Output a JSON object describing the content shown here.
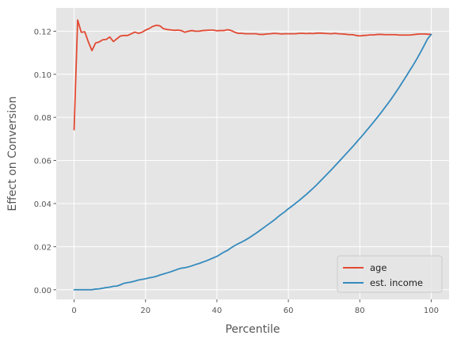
{
  "chart_data": {
    "type": "line",
    "xlabel": "Percentile",
    "ylabel": "Effect on Conversion",
    "xlim": [
      -5,
      105
    ],
    "ylim": [
      -0.0045,
      0.1308
    ],
    "x_ticks": [
      0,
      20,
      40,
      60,
      80,
      100
    ],
    "y_ticks": [
      0.0,
      0.02,
      0.04,
      0.06,
      0.08,
      0.1,
      0.12
    ],
    "y_tick_labels": [
      "0.00",
      "0.02",
      "0.04",
      "0.06",
      "0.08",
      "0.10",
      "0.12"
    ],
    "grid": true,
    "legend_position": "lower-right",
    "colors": {
      "age": "#e24a33",
      "est_income": "#348abd",
      "background": "#e5e5e5",
      "grid": "#ffffff"
    },
    "series": [
      {
        "name": "age",
        "x": [
          0,
          1,
          2,
          3,
          4,
          5,
          6,
          7,
          8,
          9,
          10,
          11,
          12,
          13,
          14,
          15,
          16,
          17,
          18,
          19,
          20,
          21,
          22,
          23,
          24,
          25,
          26,
          27,
          28,
          29,
          30,
          31,
          32,
          33,
          34,
          35,
          36,
          37,
          38,
          39,
          40,
          41,
          42,
          43,
          44,
          45,
          46,
          47,
          48,
          49,
          50,
          51,
          52,
          53,
          54,
          55,
          56,
          57,
          58,
          59,
          60,
          61,
          62,
          63,
          64,
          65,
          66,
          67,
          68,
          69,
          70,
          71,
          72,
          73,
          74,
          75,
          76,
          77,
          78,
          79,
          80,
          81,
          82,
          83,
          84,
          85,
          86,
          87,
          88,
          89,
          90,
          91,
          92,
          93,
          94,
          95,
          96,
          97,
          98,
          99,
          100
        ],
        "values": [
          0.0743,
          0.1252,
          0.1195,
          0.1197,
          0.115,
          0.111,
          0.1145,
          0.115,
          0.116,
          0.1162,
          0.1173,
          0.1152,
          0.1165,
          0.1178,
          0.118,
          0.118,
          0.1188,
          0.1196,
          0.119,
          0.1195,
          0.1205,
          0.1212,
          0.1222,
          0.1227,
          0.1225,
          0.1212,
          0.1208,
          0.1206,
          0.1204,
          0.1205,
          0.1203,
          0.1195,
          0.12,
          0.1203,
          0.12,
          0.12,
          0.1203,
          0.1204,
          0.1205,
          0.1205,
          0.1202,
          0.1203,
          0.1203,
          0.1207,
          0.1203,
          0.1195,
          0.119,
          0.119,
          0.1188,
          0.1188,
          0.1188,
          0.1188,
          0.1185,
          0.1185,
          0.1187,
          0.1188,
          0.119,
          0.1189,
          0.1187,
          0.1188,
          0.1188,
          0.1188,
          0.1188,
          0.119,
          0.119,
          0.1189,
          0.119,
          0.1189,
          0.1191,
          0.1191,
          0.119,
          0.1189,
          0.1188,
          0.119,
          0.1188,
          0.1187,
          0.1186,
          0.1184,
          0.1184,
          0.118,
          0.1178,
          0.118,
          0.1181,
          0.1183,
          0.1183,
          0.1185,
          0.1185,
          0.1184,
          0.1184,
          0.1184,
          0.1184,
          0.1182,
          0.1182,
          0.1182,
          0.1182,
          0.1184,
          0.1186,
          0.1187,
          0.1187,
          0.1186,
          0.1185
        ]
      },
      {
        "name": "est. income",
        "x": [
          0,
          1,
          2,
          3,
          4,
          5,
          6,
          7,
          8,
          9,
          10,
          11,
          12,
          13,
          14,
          15,
          16,
          17,
          18,
          19,
          20,
          21,
          22,
          23,
          24,
          25,
          26,
          27,
          28,
          29,
          30,
          31,
          32,
          33,
          34,
          35,
          36,
          37,
          38,
          39,
          40,
          41,
          42,
          43,
          44,
          45,
          46,
          47,
          48,
          49,
          50,
          51,
          52,
          53,
          54,
          55,
          56,
          57,
          58,
          59,
          60,
          61,
          62,
          63,
          64,
          65,
          66,
          67,
          68,
          69,
          70,
          71,
          72,
          73,
          74,
          75,
          76,
          77,
          78,
          79,
          80,
          81,
          82,
          83,
          84,
          85,
          86,
          87,
          88,
          89,
          90,
          91,
          92,
          93,
          94,
          95,
          96,
          97,
          98,
          99,
          100
        ],
        "values": [
          0.0,
          0.0,
          0.0,
          0.0,
          0.0,
          0.0,
          0.0003,
          0.0004,
          0.0007,
          0.001,
          0.0012,
          0.0016,
          0.0017,
          0.0023,
          0.003,
          0.0033,
          0.0036,
          0.004,
          0.0045,
          0.0048,
          0.0051,
          0.0055,
          0.0058,
          0.0062,
          0.0068,
          0.0073,
          0.0078,
          0.0083,
          0.0089,
          0.0095,
          0.01,
          0.0102,
          0.0106,
          0.0111,
          0.0117,
          0.0122,
          0.0128,
          0.0134,
          0.0141,
          0.0148,
          0.0155,
          0.0165,
          0.0175,
          0.0183,
          0.0195,
          0.0205,
          0.0214,
          0.0222,
          0.0231,
          0.0241,
          0.0252,
          0.0263,
          0.0275,
          0.0287,
          0.0299,
          0.0311,
          0.0323,
          0.0337,
          0.035,
          0.0362,
          0.0376,
          0.0388,
          0.0401,
          0.0414,
          0.0428,
          0.0442,
          0.0457,
          0.0472,
          0.0488,
          0.0505,
          0.0522,
          0.0539,
          0.0556,
          0.0574,
          0.0592,
          0.061,
          0.0628,
          0.0646,
          0.0664,
          0.0683,
          0.0702,
          0.0721,
          0.0741,
          0.0761,
          0.0781,
          0.0802,
          0.0823,
          0.0845,
          0.0867,
          0.089,
          0.0914,
          0.0939,
          0.0965,
          0.0991,
          0.1018,
          0.1044,
          0.1072,
          0.1102,
          0.1133,
          0.1165,
          0.1185
        ]
      }
    ]
  }
}
